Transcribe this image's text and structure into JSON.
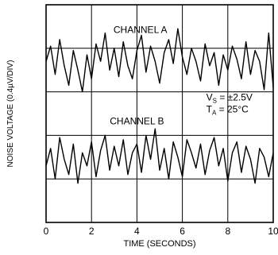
{
  "chart_data": {
    "type": "line",
    "title": "",
    "xlabel": "TIME (SECONDS)",
    "ylabel": "NOISE VOLTAGE (0.4µV/DIV)",
    "xlim": [
      0,
      10
    ],
    "x_ticks": [
      "0",
      "2",
      "4",
      "6",
      "8",
      "10"
    ],
    "y_divisions": 5,
    "grid": true,
    "legend": "none",
    "annotation": {
      "line1_main": "V",
      "line1_sub": "S",
      "line1_rest": " = ±2.5V",
      "line2_main": "T",
      "line2_sub": "A",
      "line2_rest": " = 25°C"
    },
    "series": [
      {
        "name": "CHANNEL A",
        "color": "#000000",
        "offset_div": 3.6,
        "x": [
          0,
          0.2,
          0.4,
          0.6,
          0.8,
          1.0,
          1.2,
          1.4,
          1.6,
          1.8,
          2.0,
          2.2,
          2.4,
          2.6,
          2.8,
          3.0,
          3.2,
          3.4,
          3.6,
          3.8,
          4.0,
          4.2,
          4.4,
          4.6,
          4.8,
          5.0,
          5.2,
          5.4,
          5.6,
          5.8,
          6.0,
          6.2,
          6.4,
          6.6,
          6.8,
          7.0,
          7.2,
          7.4,
          7.6,
          7.8,
          8.0,
          8.2,
          8.4,
          8.6,
          8.8,
          9.0,
          9.2,
          9.4,
          9.6,
          9.8,
          10.0
        ],
        "values": [
          0.1,
          0.45,
          -0.2,
          0.6,
          0.0,
          -0.45,
          0.35,
          -0.1,
          -0.6,
          0.25,
          -0.3,
          0.5,
          0.1,
          0.75,
          -0.1,
          0.4,
          -0.25,
          0.55,
          0.0,
          -0.3,
          0.35,
          0.7,
          -0.15,
          0.45,
          0.1,
          -0.4,
          0.3,
          0.6,
          0.05,
          0.85,
          0.2,
          -0.2,
          0.4,
          0.1,
          -0.35,
          0.5,
          0.0,
          0.3,
          -0.45,
          0.25,
          -0.1,
          0.45,
          0.15,
          -0.3,
          0.55,
          -0.2,
          0.35,
          0.1,
          -0.55,
          0.75,
          -0.5
        ]
      },
      {
        "name": "CHANNEL B",
        "color": "#000000",
        "offset_div": 1.4,
        "x": [
          0,
          0.2,
          0.4,
          0.6,
          0.8,
          1.0,
          1.2,
          1.4,
          1.6,
          1.8,
          2.0,
          2.2,
          2.4,
          2.6,
          2.8,
          3.0,
          3.2,
          3.4,
          3.6,
          3.8,
          4.0,
          4.2,
          4.4,
          4.6,
          4.8,
          5.0,
          5.2,
          5.4,
          5.6,
          5.8,
          6.0,
          6.2,
          6.4,
          6.6,
          6.8,
          7.0,
          7.2,
          7.4,
          7.6,
          7.8,
          8.0,
          8.2,
          8.4,
          8.6,
          8.8,
          9.0,
          9.2,
          9.4,
          9.6,
          9.8,
          10.0
        ],
        "values": [
          -0.1,
          0.3,
          -0.4,
          0.55,
          0.05,
          -0.3,
          0.4,
          -0.5,
          0.2,
          -0.1,
          0.45,
          -0.35,
          0.25,
          0.6,
          -0.2,
          0.35,
          -0.1,
          0.5,
          -0.3,
          0.2,
          0.4,
          -0.25,
          0.6,
          0.05,
          0.75,
          -0.2,
          0.3,
          -0.4,
          0.45,
          0.1,
          -0.35,
          0.5,
          0.2,
          -0.15,
          0.4,
          -0.3,
          0.25,
          0.55,
          -0.1,
          0.3,
          -0.45,
          0.2,
          0.45,
          -0.25,
          0.35,
          0.05,
          -0.5,
          0.3,
          0.1,
          -0.35,
          0.2
        ]
      }
    ]
  }
}
